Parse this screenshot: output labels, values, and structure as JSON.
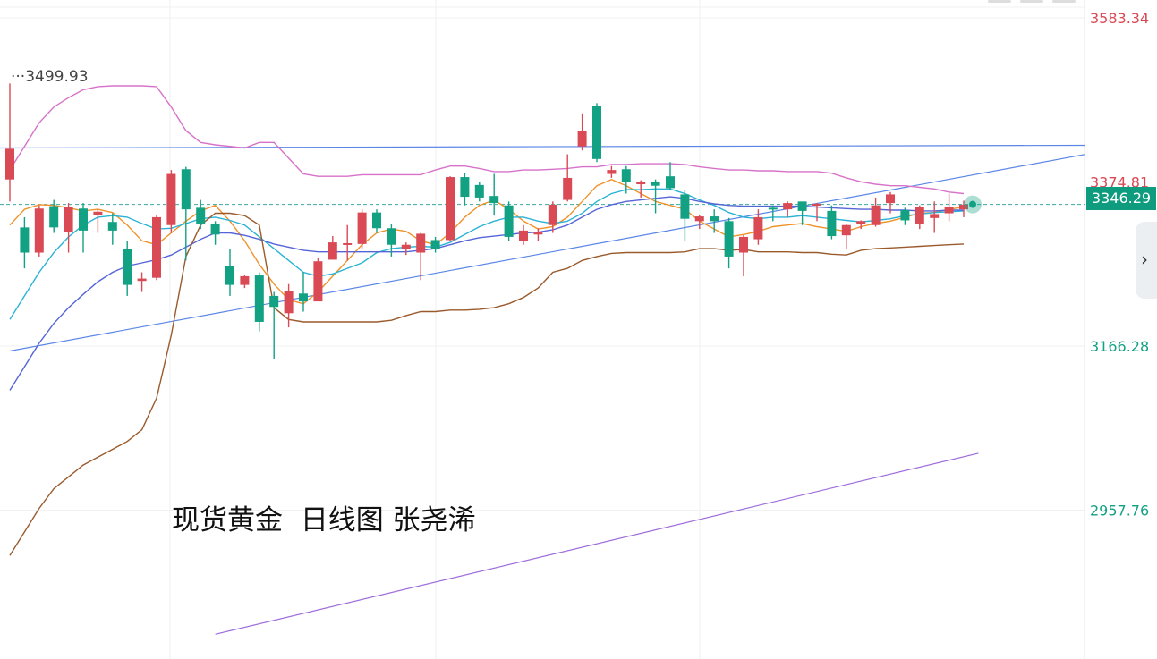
{
  "caption": "现货黄金  日线图 张尧浠",
  "current_price_label": "3346.29",
  "high_label": "3499.93",
  "colors": {
    "up": "#d94a55",
    "down": "#13a184",
    "ma_fast": "#f0922a",
    "ma_mid": "#2bb3d6",
    "ma_slow": "#5565d8",
    "boll_upper": "#d872c9",
    "boll_lower": "#9a5a2c",
    "trendline": "#5a86e6",
    "channel": "#9d6cdb",
    "last_price_line": "#3aa9a0"
  },
  "icons": {
    "side_handle": "chevron-right-icon"
  },
  "chart_data": {
    "type": "candlestick",
    "y_axis": {
      "position": "right",
      "ticks": [
        {
          "value": 3583.34,
          "label": "3583.34",
          "color": "#d94a55"
        },
        {
          "value": 3374.81,
          "label": "3374.81",
          "color": "#d94a55"
        },
        {
          "value": 3166.28,
          "label": "3166.28",
          "color": "#13a184"
        },
        {
          "value": 2957.76,
          "label": "2957.76",
          "color": "#13a184"
        }
      ],
      "range": [
        2800,
        3600
      ]
    },
    "last_price": 3346.29,
    "annotated_high": 3499.93,
    "candles": [
      [
        3378,
        3417,
        3350,
        3500
      ],
      [
        3317,
        3285,
        3265,
        3330
      ],
      [
        3285,
        3341,
        3280,
        3345
      ],
      [
        3344,
        3317,
        3310,
        3352
      ],
      [
        3311,
        3343,
        3285,
        3348
      ],
      [
        3341,
        3313,
        3285,
        3348
      ],
      [
        3333,
        3337,
        3310,
        3340
      ],
      [
        3324,
        3313,
        3295,
        3335
      ],
      [
        3290,
        3244,
        3230,
        3300
      ],
      [
        3249,
        3252,
        3235,
        3260
      ],
      [
        3253,
        3330,
        3250,
        3333
      ],
      [
        3320,
        3385,
        3310,
        3390
      ],
      [
        3391,
        3340,
        3275,
        3394
      ],
      [
        3342,
        3322,
        3315,
        3352
      ],
      [
        3322,
        3308,
        3295,
        3325
      ],
      [
        3268,
        3244,
        3230,
        3290
      ],
      [
        3244,
        3255,
        3240,
        3256
      ],
      [
        3256,
        3197,
        3185,
        3260
      ],
      [
        3230,
        3216,
        3150,
        3235
      ],
      [
        3208,
        3236,
        3190,
        3245
      ],
      [
        3233,
        3223,
        3210,
        3260
      ],
      [
        3223,
        3274,
        3228,
        3278
      ],
      [
        3276,
        3298,
        3280,
        3306
      ],
      [
        3297,
        3297,
        3275,
        3320
      ],
      [
        3296,
        3336,
        3290,
        3340
      ],
      [
        3336,
        3316,
        3310,
        3340
      ],
      [
        3316,
        3295,
        3280,
        3322
      ],
      [
        3290,
        3295,
        3282,
        3298
      ],
      [
        3285,
        3309,
        3250,
        3310
      ],
      [
        3301,
        3290,
        3285,
        3305
      ],
      [
        3301,
        3381,
        3300,
        3382
      ],
      [
        3381,
        3356,
        3345,
        3386
      ],
      [
        3371,
        3355,
        3350,
        3375
      ],
      [
        3357,
        3348,
        3332,
        3385
      ],
      [
        3345,
        3305,
        3300,
        3350
      ],
      [
        3300,
        3313,
        3295,
        3320
      ],
      [
        3308,
        3311,
        3300,
        3316
      ],
      [
        3320,
        3346,
        3310,
        3350
      ],
      [
        3352,
        3380,
        3350,
        3410
      ],
      [
        3420,
        3440,
        3415,
        3462
      ],
      [
        3472,
        3404,
        3400,
        3475
      ],
      [
        3385,
        3390,
        3380,
        3395
      ],
      [
        3391,
        3375,
        3360,
        3395
      ],
      [
        3372,
        3375,
        3355,
        3377
      ],
      [
        3375,
        3370,
        3335,
        3378
      ],
      [
        3382,
        3367,
        3365,
        3400
      ],
      [
        3359,
        3328,
        3300,
        3365
      ],
      [
        3325,
        3331,
        3315,
        3333
      ],
      [
        3331,
        3325,
        3310,
        3340
      ],
      [
        3325,
        3280,
        3265,
        3329
      ],
      [
        3285,
        3305,
        3255,
        3307
      ],
      [
        3302,
        3330,
        3295,
        3340
      ],
      [
        3342,
        3340,
        3325,
        3345
      ],
      [
        3340,
        3348,
        3330,
        3350
      ],
      [
        3350,
        3338,
        3320,
        3345
      ],
      [
        3345,
        3347,
        3325,
        3348
      ],
      [
        3338,
        3306,
        3302,
        3345
      ],
      [
        3307,
        3320,
        3290,
        3322
      ],
      [
        3321,
        3325,
        3315,
        3326
      ],
      [
        3320,
        3345,
        3318,
        3355
      ],
      [
        3348,
        3359,
        3335,
        3362
      ],
      [
        3339,
        3326,
        3320,
        3342
      ],
      [
        3322,
        3343,
        3315,
        3345
      ],
      [
        3329,
        3334,
        3310,
        3350
      ],
      [
        3335,
        3343,
        3325,
        3360
      ],
      [
        3340,
        3346,
        3330,
        3351
      ]
    ],
    "overlays": [
      {
        "kind": "line",
        "color_key": "ma_fast",
        "values": [
          3320,
          3340,
          3346,
          3345,
          3342,
          3338,
          3340,
          3336,
          3320,
          3300,
          3295,
          3310,
          3325,
          3338,
          3345,
          3325,
          3300,
          3270,
          3245,
          3225,
          3220,
          3235,
          3255,
          3275,
          3295,
          3310,
          3315,
          3312,
          3300,
          3295,
          3310,
          3330,
          3345,
          3352,
          3340,
          3325,
          3315,
          3318,
          3330,
          3350,
          3370,
          3378,
          3370,
          3360,
          3350,
          3345,
          3340,
          3325,
          3315,
          3305,
          3308,
          3312,
          3318,
          3320,
          3322,
          3318,
          3315,
          3312,
          3318,
          3322,
          3325,
          3330,
          3335,
          3336,
          3340,
          3343
        ]
      },
      {
        "kind": "line",
        "color_key": "ma_mid",
        "values": [
          3200,
          3230,
          3260,
          3285,
          3305,
          3320,
          3330,
          3332,
          3330,
          3322,
          3315,
          3316,
          3322,
          3328,
          3330,
          3326,
          3320,
          3305,
          3290,
          3275,
          3260,
          3255,
          3258,
          3265,
          3272,
          3285,
          3290,
          3292,
          3293,
          3292,
          3298,
          3308,
          3318,
          3325,
          3330,
          3330,
          3325,
          3322,
          3325,
          3335,
          3350,
          3360,
          3365,
          3365,
          3366,
          3366,
          3360,
          3352,
          3345,
          3336,
          3330,
          3328,
          3330,
          3330,
          3332,
          3330,
          3328,
          3326,
          3324,
          3326,
          3328,
          3332,
          3334,
          3336,
          3337,
          3338
        ]
      },
      {
        "kind": "line",
        "color_key": "ma_slow",
        "values": [
          3110,
          3140,
          3170,
          3195,
          3215,
          3232,
          3248,
          3260,
          3268,
          3272,
          3276,
          3282,
          3292,
          3302,
          3310,
          3310,
          3307,
          3302,
          3296,
          3292,
          3288,
          3286,
          3286,
          3286,
          3286,
          3286,
          3286,
          3286,
          3288,
          3290,
          3295,
          3300,
          3304,
          3306,
          3308,
          3310,
          3311,
          3314,
          3320,
          3330,
          3340,
          3346,
          3350,
          3352,
          3354,
          3356,
          3354,
          3350,
          3347,
          3345,
          3344,
          3344,
          3344,
          3344,
          3344,
          3343,
          3342,
          3341,
          3340,
          3340,
          3339,
          3339,
          3338,
          3338,
          3339,
          3339
        ]
      },
      {
        "kind": "line",
        "color_key": "boll_upper",
        "values": [
          3390,
          3420,
          3450,
          3470,
          3482,
          3492,
          3496,
          3497,
          3497,
          3497,
          3496,
          3470,
          3440,
          3425,
          3422,
          3420,
          3418,
          3425,
          3425,
          3405,
          3385,
          3382,
          3382,
          3382,
          3384,
          3384,
          3384,
          3384,
          3384,
          3390,
          3395,
          3395,
          3392,
          3388,
          3388,
          3390,
          3390,
          3391,
          3392,
          3394,
          3394,
          3397,
          3397,
          3398,
          3398,
          3398,
          3397,
          3394,
          3392,
          3390,
          3390,
          3389,
          3389,
          3388,
          3388,
          3388,
          3386,
          3380,
          3375,
          3372,
          3370,
          3370,
          3368,
          3366,
          3362,
          3360
        ]
      },
      {
        "kind": "line",
        "color_key": "boll_lower",
        "values": [
          2900,
          2930,
          2960,
          2985,
          3000,
          3015,
          3025,
          3035,
          3045,
          3060,
          3100,
          3180,
          3280,
          3320,
          3335,
          3335,
          3332,
          3320,
          3215,
          3200,
          3197,
          3197,
          3197,
          3197,
          3197,
          3197,
          3199,
          3205,
          3210,
          3210,
          3212,
          3212,
          3213,
          3215,
          3220,
          3228,
          3240,
          3260,
          3265,
          3275,
          3280,
          3284,
          3285,
          3285,
          3285,
          3285,
          3286,
          3290,
          3290,
          3288,
          3289,
          3286,
          3286,
          3286,
          3285,
          3285,
          3283,
          3282,
          3288,
          3290,
          3291,
          3292,
          3293,
          3294,
          3295,
          3296
        ]
      }
    ],
    "drawings": [
      {
        "kind": "horizontal",
        "color_key": "trendline",
        "value": 3418
      },
      {
        "kind": "ray",
        "color_key": "trendline",
        "from": [
          0,
          3160
        ],
        "to": [
          66,
          3385
        ]
      },
      {
        "kind": "ray",
        "color_key": "channel",
        "from": [
          14,
          2800
        ],
        "to": [
          66,
          3030
        ]
      }
    ]
  }
}
